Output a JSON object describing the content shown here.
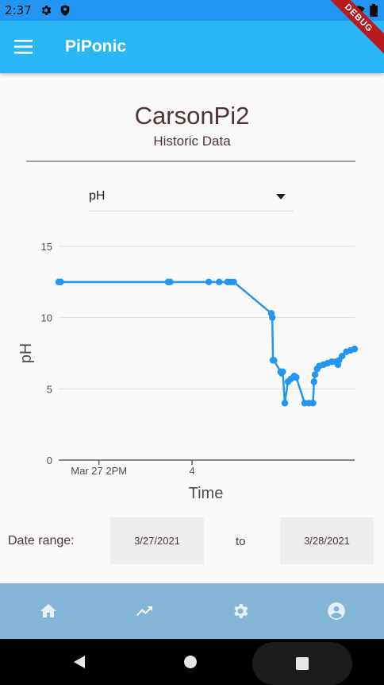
{
  "status_bar": {
    "time": "2:37"
  },
  "debug_banner": "DEBUG",
  "app_bar": {
    "title": "PiPonic"
  },
  "page": {
    "device_name": "CarsonPi2",
    "subtitle": "Historic Data"
  },
  "metric_dropdown": {
    "selected": "pH"
  },
  "chart_data": {
    "type": "line",
    "title": "",
    "xlabel": "Time",
    "ylabel": "pH",
    "ylim": [
      0,
      15
    ],
    "yticks": [
      0,
      5,
      10,
      15
    ],
    "xticks": [
      {
        "label": "Mar 27 2PM",
        "x": 11.53
      },
      {
        "label": "4",
        "x": 16.0
      }
    ],
    "xlim": [
      9.6,
      23.8
    ],
    "grid": "horizontal",
    "series": [
      {
        "color": "#2196f3",
        "x": [
          9.6,
          9.7,
          14.85,
          14.95,
          16.8,
          17.3,
          17.7,
          17.85,
          18.0,
          19.8,
          19.85,
          19.88,
          19.93,
          20.25,
          20.3,
          20.35,
          20.45,
          20.6,
          20.75,
          20.9,
          21.0,
          21.4,
          21.6,
          21.8,
          21.85,
          21.9,
          22.0,
          22.1,
          22.3,
          22.5,
          22.7,
          22.9,
          23.0,
          23.05,
          23.2,
          23.4,
          23.6,
          23.8
        ],
        "y": [
          12.5,
          12.5,
          12.5,
          12.5,
          12.5,
          12.5,
          12.5,
          12.5,
          12.5,
          10.3,
          10.0,
          7.0,
          7.0,
          6.2,
          6.1,
          6.2,
          4.0,
          5.5,
          5.7,
          5.9,
          5.8,
          4.0,
          4.0,
          4.0,
          5.5,
          6.0,
          6.4,
          6.6,
          6.7,
          6.8,
          6.9,
          6.9,
          6.7,
          7.0,
          7.3,
          7.6,
          7.7,
          7.8
        ]
      }
    ]
  },
  "date_range": {
    "label": "Date range:",
    "start": "3/27/2021",
    "to": "to",
    "end": "3/28/2021"
  },
  "bottom_nav": [
    {
      "icon": "home-icon"
    },
    {
      "icon": "trending-up-icon"
    },
    {
      "icon": "settings-icon"
    },
    {
      "icon": "account-icon"
    }
  ]
}
